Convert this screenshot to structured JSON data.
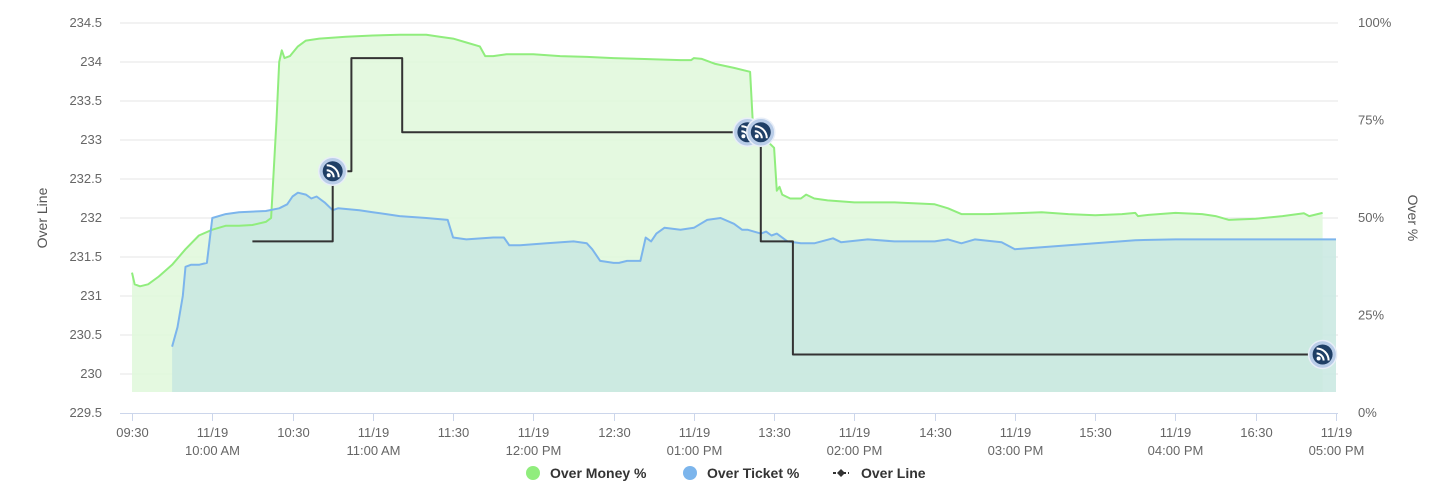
{
  "chart_data": {
    "type": "line",
    "y_left": {
      "label": "Over Line",
      "min": 229.5,
      "max": 234.5,
      "ticks": [
        "234.5",
        "234",
        "233.5",
        "233",
        "232.5",
        "232",
        "231.5",
        "231",
        "230.5",
        "230",
        "229.5"
      ]
    },
    "y_right": {
      "label": "Over %",
      "min": 0,
      "max": 100,
      "ticks": [
        "100%",
        "75%",
        "50%",
        "25%",
        "0%"
      ]
    },
    "x_axis": {
      "start": "09:30",
      "end": "17:00",
      "ticks": [
        {
          "time": "09:30",
          "line1": "09:30",
          "line2": ""
        },
        {
          "time": "10:00",
          "line1": "11/19",
          "line2": "10:00 AM"
        },
        {
          "time": "10:30",
          "line1": "10:30",
          "line2": ""
        },
        {
          "time": "11:00",
          "line1": "11/19",
          "line2": "11:00 AM"
        },
        {
          "time": "11:30",
          "line1": "11:30",
          "line2": ""
        },
        {
          "time": "12:00",
          "line1": "11/19",
          "line2": "12:00 PM"
        },
        {
          "time": "12:30",
          "line1": "12:30",
          "line2": ""
        },
        {
          "time": "13:00",
          "line1": "11/19",
          "line2": "01:00 PM"
        },
        {
          "time": "13:30",
          "line1": "13:30",
          "line2": ""
        },
        {
          "time": "14:00",
          "line1": "11/19",
          "line2": "02:00 PM"
        },
        {
          "time": "14:30",
          "line1": "14:30",
          "line2": ""
        },
        {
          "time": "15:00",
          "line1": "11/19",
          "line2": "03:00 PM"
        },
        {
          "time": "15:30",
          "line1": "15:30",
          "line2": ""
        },
        {
          "time": "16:00",
          "line1": "11/19",
          "line2": "04:00 PM"
        },
        {
          "time": "16:30",
          "line1": "16:30",
          "line2": ""
        },
        {
          "time": "17:00",
          "line1": "11/19",
          "line2": "05:00 PM"
        }
      ]
    },
    "series": [
      {
        "name": "Over Money %",
        "axis": "right",
        "color": "#90ed7d",
        "fill": "#dff8da",
        "points": [
          [
            "09:30",
            36
          ],
          [
            "09:31",
            33
          ],
          [
            "09:33",
            32.5
          ],
          [
            "09:36",
            33
          ],
          [
            "09:40",
            35
          ],
          [
            "09:45",
            38
          ],
          [
            "09:50",
            42
          ],
          [
            "09:55",
            45.5
          ],
          [
            "10:00",
            47
          ],
          [
            "10:05",
            48
          ],
          [
            "10:10",
            48
          ],
          [
            "10:15",
            48.2
          ],
          [
            "10:20",
            49
          ],
          [
            "10:22",
            50
          ],
          [
            "10:24",
            75
          ],
          [
            "10:25",
            90
          ],
          [
            "10:26",
            93
          ],
          [
            "10:27",
            91
          ],
          [
            "10:29",
            91.5
          ],
          [
            "10:32",
            94
          ],
          [
            "10:35",
            95.5
          ],
          [
            "10:40",
            96
          ],
          [
            "10:50",
            96.5
          ],
          [
            "11:00",
            96.8
          ],
          [
            "11:10",
            97
          ],
          [
            "11:20",
            97
          ],
          [
            "11:25",
            96.5
          ],
          [
            "11:30",
            96
          ],
          [
            "11:35",
            95
          ],
          [
            "11:40",
            94
          ],
          [
            "11:42",
            91.5
          ],
          [
            "11:45",
            91.5
          ],
          [
            "11:50",
            92
          ],
          [
            "11:55",
            92
          ],
          [
            "12:00",
            92
          ],
          [
            "12:10",
            91.5
          ],
          [
            "12:20",
            91.3
          ],
          [
            "12:30",
            91
          ],
          [
            "12:40",
            90.8
          ],
          [
            "12:55",
            90.5
          ],
          [
            "12:59",
            90.5
          ],
          [
            "13:00",
            91
          ],
          [
            "13:03",
            90.8
          ],
          [
            "13:08",
            89.5
          ],
          [
            "13:15",
            88.5
          ],
          [
            "13:21",
            87.5
          ],
          [
            "13:22",
            75
          ],
          [
            "13:24",
            73
          ],
          [
            "13:27",
            70
          ],
          [
            "13:30",
            68
          ],
          [
            "13:31",
            57
          ],
          [
            "13:32",
            58
          ],
          [
            "13:33",
            56
          ],
          [
            "13:36",
            55
          ],
          [
            "13:40",
            55
          ],
          [
            "13:42",
            56
          ],
          [
            "13:45",
            55
          ],
          [
            "13:50",
            54.5
          ],
          [
            "14:00",
            54
          ],
          [
            "14:15",
            54
          ],
          [
            "14:30",
            53.5
          ],
          [
            "14:35",
            52.5
          ],
          [
            "14:40",
            51
          ],
          [
            "14:50",
            51
          ],
          [
            "15:00",
            51.2
          ],
          [
            "15:10",
            51.5
          ],
          [
            "15:20",
            51
          ],
          [
            "15:30",
            50.7
          ],
          [
            "15:40",
            51
          ],
          [
            "15:45",
            51.3
          ],
          [
            "15:46",
            50.5
          ],
          [
            "15:50",
            50.8
          ],
          [
            "16:00",
            51.3
          ],
          [
            "16:10",
            51
          ],
          [
            "16:15",
            50.5
          ],
          [
            "16:20",
            49.5
          ],
          [
            "16:30",
            49.8
          ],
          [
            "16:40",
            50.5
          ],
          [
            "16:48",
            51.2
          ],
          [
            "16:50",
            50.5
          ],
          [
            "16:55",
            51.3
          ]
        ]
      },
      {
        "name": "Over Ticket %",
        "axis": "right",
        "color": "#7cb5ec",
        "fill": "#c8e8e0",
        "points": [
          [
            "09:45",
            17
          ],
          [
            "09:47",
            22
          ],
          [
            "09:49",
            30
          ],
          [
            "09:50",
            37.5
          ],
          [
            "09:52",
            38
          ],
          [
            "09:55",
            38
          ],
          [
            "09:58",
            38.5
          ],
          [
            "10:00",
            50
          ],
          [
            "10:05",
            51
          ],
          [
            "10:10",
            51.5
          ],
          [
            "10:20",
            51.8
          ],
          [
            "10:25",
            52.5
          ],
          [
            "10:28",
            53.5
          ],
          [
            "10:30",
            55.5
          ],
          [
            "10:32",
            56.5
          ],
          [
            "10:35",
            56
          ],
          [
            "10:37",
            55
          ],
          [
            "10:39",
            55.5
          ],
          [
            "10:42",
            54
          ],
          [
            "10:45",
            52
          ],
          [
            "10:47",
            52.5
          ],
          [
            "10:55",
            52
          ],
          [
            "11:00",
            51.5
          ],
          [
            "11:05",
            51
          ],
          [
            "11:10",
            50.5
          ],
          [
            "11:20",
            50
          ],
          [
            "11:28",
            49.5
          ],
          [
            "11:30",
            45
          ],
          [
            "11:35",
            44.5
          ],
          [
            "11:45",
            45
          ],
          [
            "11:49",
            45
          ],
          [
            "11:51",
            43
          ],
          [
            "11:55",
            43
          ],
          [
            "12:05",
            43.5
          ],
          [
            "12:15",
            44
          ],
          [
            "12:20",
            43.5
          ],
          [
            "12:22",
            42
          ],
          [
            "12:25",
            39
          ],
          [
            "12:30",
            38.5
          ],
          [
            "12:32",
            38.5
          ],
          [
            "12:35",
            39
          ],
          [
            "12:40",
            39
          ],
          [
            "12:42",
            45
          ],
          [
            "12:44",
            44
          ],
          [
            "12:46",
            46
          ],
          [
            "12:49",
            47.5
          ],
          [
            "12:55",
            47
          ],
          [
            "13:00",
            47.5
          ],
          [
            "13:05",
            49.5
          ],
          [
            "13:10",
            50
          ],
          [
            "13:15",
            48.5
          ],
          [
            "13:18",
            47
          ],
          [
            "13:20",
            47
          ],
          [
            "13:25",
            46
          ],
          [
            "13:27",
            46.5
          ],
          [
            "13:29",
            45.5
          ],
          [
            "13:31",
            46
          ],
          [
            "13:35",
            44
          ],
          [
            "13:40",
            43.5
          ],
          [
            "13:45",
            43.5
          ],
          [
            "13:52",
            44.8
          ],
          [
            "13:55",
            43.8
          ],
          [
            "14:05",
            44.5
          ],
          [
            "14:15",
            44
          ],
          [
            "14:30",
            44
          ],
          [
            "14:35",
            44.5
          ],
          [
            "14:40",
            43.5
          ],
          [
            "14:45",
            44.5
          ],
          [
            "14:55",
            43.8
          ],
          [
            "15:00",
            42
          ],
          [
            "15:10",
            42.5
          ],
          [
            "15:20",
            43
          ],
          [
            "15:30",
            43.5
          ],
          [
            "15:45",
            44.3
          ],
          [
            "16:00",
            44.5
          ],
          [
            "16:30",
            44.5
          ],
          [
            "17:00",
            44.5
          ]
        ]
      },
      {
        "name": "Over Line",
        "axis": "left",
        "color": "#333333",
        "step": true,
        "points": [
          [
            "10:15",
            231.7
          ],
          [
            "10:45",
            231.7
          ],
          [
            "10:45",
            232.6
          ],
          [
            "10:52",
            232.6
          ],
          [
            "10:52",
            234.05
          ],
          [
            "11:11",
            234.05
          ],
          [
            "11:11",
            233.1
          ],
          [
            "13:25",
            233.1
          ],
          [
            "13:25",
            231.7
          ],
          [
            "13:37",
            231.7
          ],
          [
            "13:37",
            230.25
          ],
          [
            "16:55",
            230.25
          ]
        ],
        "markers": [
          {
            "time": "10:45",
            "value": 232.6
          },
          {
            "time": "13:20",
            "value": 233.1
          },
          {
            "time": "13:25",
            "value": 233.1
          },
          {
            "time": "16:55",
            "value": 230.25
          }
        ]
      }
    ],
    "legend": [
      {
        "label": "Over Money %",
        "color": "#90ed7d",
        "kind": "dot"
      },
      {
        "label": "Over Ticket %",
        "color": "#7cb5ec",
        "kind": "dot"
      },
      {
        "label": "Over Line",
        "color": "#333333",
        "kind": "line"
      }
    ],
    "legend_position": "bottom-center",
    "grid": true
  }
}
